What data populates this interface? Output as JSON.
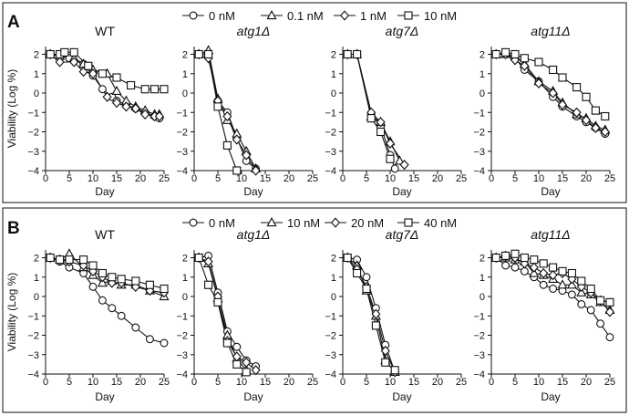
{
  "chart_data": [
    {
      "panel": "A",
      "legend": [
        "0 nM",
        "0.1 nM",
        "1 nM",
        "10 nM"
      ],
      "ylabel": "Viability (Log %)",
      "xlabel": "Day",
      "xlim": [
        0,
        25
      ],
      "ylim": [
        -4,
        2.4
      ],
      "xticks": [
        0,
        5,
        10,
        15,
        20,
        25
      ],
      "yticks": [
        2,
        1,
        0,
        -1,
        -2,
        -3,
        -4
      ],
      "subplots": [
        {
          "title": "WT",
          "italic": false,
          "type": "line",
          "series": [
            {
              "name": "0 nM",
              "x": [
                1,
                3,
                5,
                8,
                10,
                12,
                14,
                15,
                17,
                19,
                21,
                23,
                24
              ],
              "y": [
                2.0,
                1.9,
                1.8,
                1.5,
                0.9,
                0.2,
                -0.2,
                -0.4,
                -0.6,
                -0.8,
                -1.0,
                -1.2,
                -1.3
              ]
            },
            {
              "name": "0.1 nM",
              "x": [
                1,
                3,
                6,
                8,
                10,
                13,
                15,
                17,
                19,
                21,
                23,
                24
              ],
              "y": [
                2.0,
                1.9,
                1.8,
                1.5,
                1.2,
                1.0,
                0.1,
                -0.4,
                -0.7,
                -0.9,
                -1.1,
                -1.1
              ]
            },
            {
              "name": "1 nM",
              "x": [
                1,
                3,
                6,
                8,
                10,
                13,
                15,
                17,
                19,
                21,
                23,
                24
              ],
              "y": [
                2.0,
                1.6,
                1.6,
                1.1,
                1.0,
                -0.2,
                -0.5,
                -0.7,
                -0.8,
                -1.1,
                -1.2,
                -1.2
              ]
            },
            {
              "name": "10 nM",
              "x": [
                1,
                3,
                4,
                6,
                9,
                12,
                15,
                18,
                21,
                23,
                25
              ],
              "y": [
                2.0,
                2.0,
                2.1,
                2.1,
                1.4,
                1.0,
                0.8,
                0.4,
                0.2,
                0.2,
                0.2
              ]
            }
          ]
        },
        {
          "title": "atg1Δ",
          "italic": true,
          "type": "line",
          "series": [
            {
              "name": "0 nM",
              "x": [
                1,
                3,
                5,
                7,
                9,
                11,
                13
              ],
              "y": [
                2.0,
                2.0,
                -0.4,
                -1.0,
                -2.3,
                -3.5,
                -3.9
              ]
            },
            {
              "name": "0.1 nM",
              "x": [
                1,
                3,
                5,
                7,
                9,
                11,
                13
              ],
              "y": [
                2.0,
                2.2,
                -0.3,
                -1.4,
                -2.1,
                -3.0,
                -3.9
              ]
            },
            {
              "name": "1 nM",
              "x": [
                1,
                3,
                5,
                7,
                9,
                11,
                13
              ],
              "y": [
                2.0,
                1.8,
                -0.4,
                -1.2,
                -2.4,
                -3.2,
                -4.0
              ]
            },
            {
              "name": "10 nM",
              "x": [
                1,
                3,
                5,
                7,
                9
              ],
              "y": [
                2.0,
                2.0,
                -0.7,
                -2.7,
                -4.0
              ]
            }
          ]
        },
        {
          "title": "atg7Δ",
          "italic": true,
          "type": "line",
          "series": [
            {
              "name": "0 nM",
              "x": [
                1,
                3,
                6,
                8,
                10,
                11
              ],
              "y": [
                2.0,
                2.0,
                -1.1,
                -1.7,
                -3.2,
                -3.9
              ]
            },
            {
              "name": "0.1 nM",
              "x": [
                1,
                3,
                6,
                8,
                10,
                12
              ],
              "y": [
                2.0,
                2.0,
                -1.2,
                -1.5,
                -2.5,
                -3.5
              ]
            },
            {
              "name": "1 nM",
              "x": [
                1,
                3,
                6,
                8,
                10,
                13
              ],
              "y": [
                2.0,
                2.0,
                -1.0,
                -1.5,
                -2.6,
                -3.7
              ]
            },
            {
              "name": "10 nM",
              "x": [
                1,
                3,
                6,
                8,
                10
              ],
              "y": [
                2.0,
                2.0,
                -1.3,
                -2.0,
                -3.4
              ]
            }
          ]
        },
        {
          "title": "atg11Δ",
          "italic": true,
          "type": "line",
          "series": [
            {
              "name": "0 nM",
              "x": [
                1,
                3,
                5,
                7,
                10,
                13,
                15,
                18,
                20,
                22,
                24
              ],
              "y": [
                2.0,
                2.0,
                1.8,
                1.2,
                0.6,
                -0.2,
                -0.7,
                -1.2,
                -1.5,
                -1.8,
                -2.1
              ]
            },
            {
              "name": "0.1 nM",
              "x": [
                1,
                3,
                5,
                7,
                10,
                13,
                15,
                18,
                20,
                22,
                24
              ],
              "y": [
                2.0,
                2.0,
                1.9,
                1.5,
                0.6,
                0.1,
                -0.5,
                -1.1,
                -1.3,
                -1.7,
                -1.9
              ]
            },
            {
              "name": "1 nM",
              "x": [
                1,
                3,
                5,
                7,
                10,
                13,
                15,
                18,
                20,
                22,
                24
              ],
              "y": [
                2.0,
                2.0,
                1.7,
                1.4,
                0.5,
                0.0,
                -0.6,
                -1.0,
                -1.4,
                -1.8,
                -2.0
              ]
            },
            {
              "name": "10 nM",
              "x": [
                1,
                3,
                5,
                7,
                10,
                13,
                15,
                18,
                20,
                22,
                24
              ],
              "y": [
                2.0,
                2.1,
                2.0,
                1.8,
                1.6,
                1.2,
                0.8,
                0.3,
                -0.2,
                -0.9,
                -1.2
              ]
            }
          ]
        }
      ]
    },
    {
      "panel": "B",
      "legend": [
        "0 nM",
        "10 nM",
        "20 nM",
        "40 nM"
      ],
      "ylabel": "Viability (Log %)",
      "xlabel": "Day",
      "xlim": [
        0,
        25
      ],
      "ylim": [
        -4,
        2.4
      ],
      "xticks": [
        0,
        5,
        10,
        15,
        20,
        25
      ],
      "yticks": [
        2,
        1,
        0,
        -1,
        -2,
        -3,
        -4
      ],
      "subplots": [
        {
          "title": "WT",
          "italic": false,
          "type": "line",
          "series": [
            {
              "name": "0 nM",
              "x": [
                1,
                3,
                5,
                8,
                10,
                12,
                14,
                16,
                19,
                22,
                25
              ],
              "y": [
                2.0,
                1.8,
                1.5,
                1.2,
                0.5,
                -0.2,
                -0.6,
                -1.0,
                -1.6,
                -2.2,
                -2.4
              ]
            },
            {
              "name": "10 nM",
              "x": [
                1,
                3,
                5,
                8,
                10,
                12,
                14,
                16,
                19,
                22,
                25
              ],
              "y": [
                2.0,
                1.9,
                2.2,
                1.5,
                1.1,
                0.7,
                0.8,
                0.6,
                0.6,
                0.3,
                0.0
              ]
            },
            {
              "name": "20 nM",
              "x": [
                1,
                3,
                5,
                8,
                10,
                12,
                14,
                16,
                19,
                22,
                25
              ],
              "y": [
                2.0,
                1.9,
                1.8,
                1.6,
                1.3,
                1.0,
                0.7,
                0.7,
                0.5,
                0.3,
                0.2
              ]
            },
            {
              "name": "40 nM",
              "x": [
                1,
                3,
                5,
                8,
                10,
                12,
                14,
                16,
                19,
                22,
                25
              ],
              "y": [
                2.0,
                1.9,
                1.9,
                1.9,
                1.6,
                1.2,
                1.0,
                0.9,
                0.8,
                0.6,
                0.4
              ]
            }
          ]
        },
        {
          "title": "atg1Δ",
          "italic": true,
          "type": "line",
          "series": [
            {
              "name": "0 nM",
              "x": [
                1,
                3,
                5,
                7,
                9,
                11,
                13
              ],
              "y": [
                2.0,
                2.1,
                0.2,
                -1.8,
                -2.6,
                -3.3,
                -3.6
              ]
            },
            {
              "name": "10 nM",
              "x": [
                1,
                3,
                5,
                7,
                9,
                11
              ],
              "y": [
                2.0,
                1.7,
                -0.1,
                -2.0,
                -3.2,
                -3.8
              ]
            },
            {
              "name": "20 nM",
              "x": [
                1,
                3,
                5,
                7,
                9,
                11,
                13
              ],
              "y": [
                2.0,
                1.8,
                0.0,
                -2.3,
                -3.1,
                -3.4,
                -3.8
              ]
            },
            {
              "name": "40 nM",
              "x": [
                1,
                3,
                5,
                7,
                9,
                11
              ],
              "y": [
                2.0,
                0.6,
                -0.3,
                -2.4,
                -3.5,
                -3.9
              ]
            }
          ]
        },
        {
          "title": "atg7Δ",
          "italic": true,
          "type": "line",
          "series": [
            {
              "name": "0 nM",
              "x": [
                1,
                3,
                5,
                7,
                9,
                11
              ],
              "y": [
                2.0,
                1.9,
                1.0,
                -0.6,
                -2.5,
                -3.9
              ]
            },
            {
              "name": "10 nM",
              "x": [
                1,
                3,
                5,
                7,
                9,
                11
              ],
              "y": [
                2.0,
                1.6,
                0.3,
                -1.0,
                -3.3,
                -3.9
              ]
            },
            {
              "name": "20 nM",
              "x": [
                1,
                3,
                5,
                7,
                9,
                11
              ],
              "y": [
                2.0,
                1.4,
                0.5,
                -0.9,
                -2.8,
                -3.9
              ]
            },
            {
              "name": "40 nM",
              "x": [
                1,
                3,
                5,
                7,
                9,
                11
              ],
              "y": [
                2.0,
                1.2,
                0.4,
                -1.5,
                -3.4,
                -3.8
              ]
            }
          ]
        },
        {
          "title": "atg11Δ",
          "italic": true,
          "type": "line",
          "series": [
            {
              "name": "0 nM",
              "x": [
                1,
                3,
                5,
                7,
                9,
                11,
                13,
                15,
                17,
                19,
                21,
                23,
                25
              ],
              "y": [
                2.0,
                1.6,
                1.5,
                1.3,
                1.0,
                0.6,
                0.4,
                0.3,
                0.1,
                -0.4,
                -0.7,
                -1.4,
                -2.1
              ]
            },
            {
              "name": "10 nM",
              "x": [
                1,
                3,
                5,
                7,
                9,
                11,
                13,
                15,
                17,
                19,
                21,
                23,
                25
              ],
              "y": [
                2.0,
                2.0,
                1.9,
                1.8,
                1.2,
                1.1,
                0.9,
                0.6,
                0.6,
                0.2,
                0.1,
                -0.3,
                -0.7
              ]
            },
            {
              "name": "20 nM",
              "x": [
                1,
                3,
                5,
                7,
                9,
                11,
                13,
                15,
                17,
                19,
                21,
                23,
                25
              ],
              "y": [
                2.0,
                2.1,
                2.0,
                1.7,
                1.5,
                1.2,
                1.1,
                1.2,
                0.9,
                0.5,
                0.2,
                -0.2,
                -0.8
              ]
            },
            {
              "name": "40 nM",
              "x": [
                1,
                3,
                5,
                7,
                9,
                11,
                13,
                15,
                17,
                19,
                21,
                23,
                25
              ],
              "y": [
                2.0,
                2.1,
                2.2,
                2.0,
                1.9,
                1.7,
                1.5,
                1.3,
                1.2,
                0.8,
                0.4,
                -0.2,
                -0.3
              ]
            }
          ]
        }
      ]
    }
  ]
}
